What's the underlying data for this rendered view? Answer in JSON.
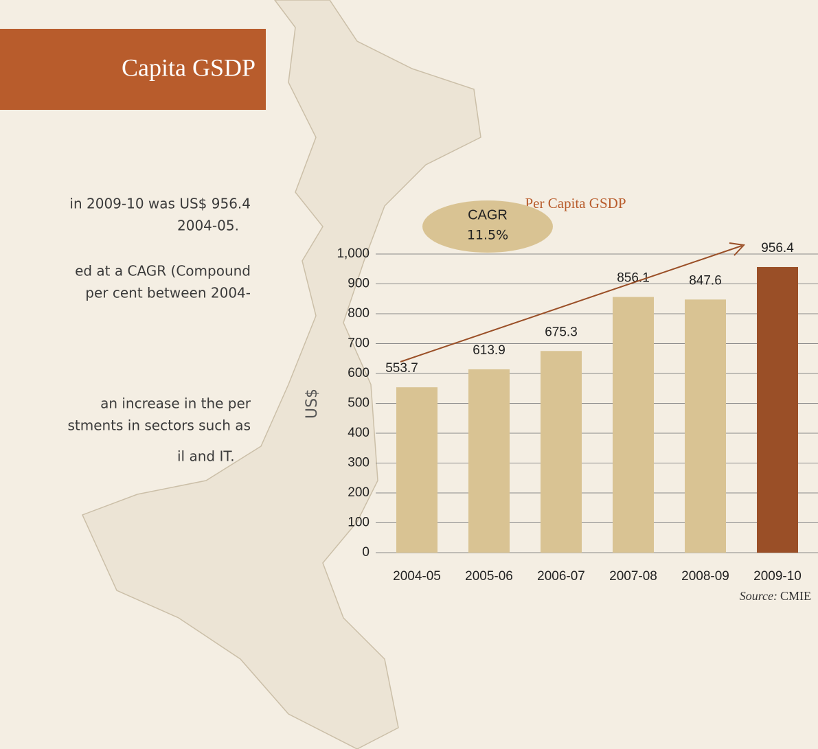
{
  "header": {
    "title": "Capita GSDP"
  },
  "body": {
    "lines": [
      "in 2009-10 was US$ 956.4",
      "2004-05.",
      "ed at a CAGR (Compound",
      "per cent between 2004-",
      "an increase in the per",
      "stments in sectors such as",
      "il and IT."
    ]
  },
  "chart_data": {
    "type": "bar",
    "title": "Per Capita GSDP",
    "y_label": "US$",
    "categories": [
      "2004-05",
      "2005-06",
      "2006-07",
      "2007-08",
      "2008-09",
      "2009-10"
    ],
    "values": [
      553.7,
      613.9,
      675.3,
      856.1,
      847.6,
      956.4
    ],
    "colors": [
      "#d9c393",
      "#d9c393",
      "#d9c393",
      "#d9c393",
      "#d9c393",
      "#9a4f27"
    ],
    "ylim": [
      0,
      1000
    ],
    "yticks": [
      0,
      100,
      200,
      300,
      400,
      500,
      600,
      700,
      800,
      900,
      {
        "value": 1000,
        "label": "1,000"
      }
    ],
    "grid": true,
    "annotation": {
      "title": "CAGR",
      "value": "11.5%"
    },
    "source": {
      "label": "Source:",
      "text": "CMIE"
    }
  }
}
